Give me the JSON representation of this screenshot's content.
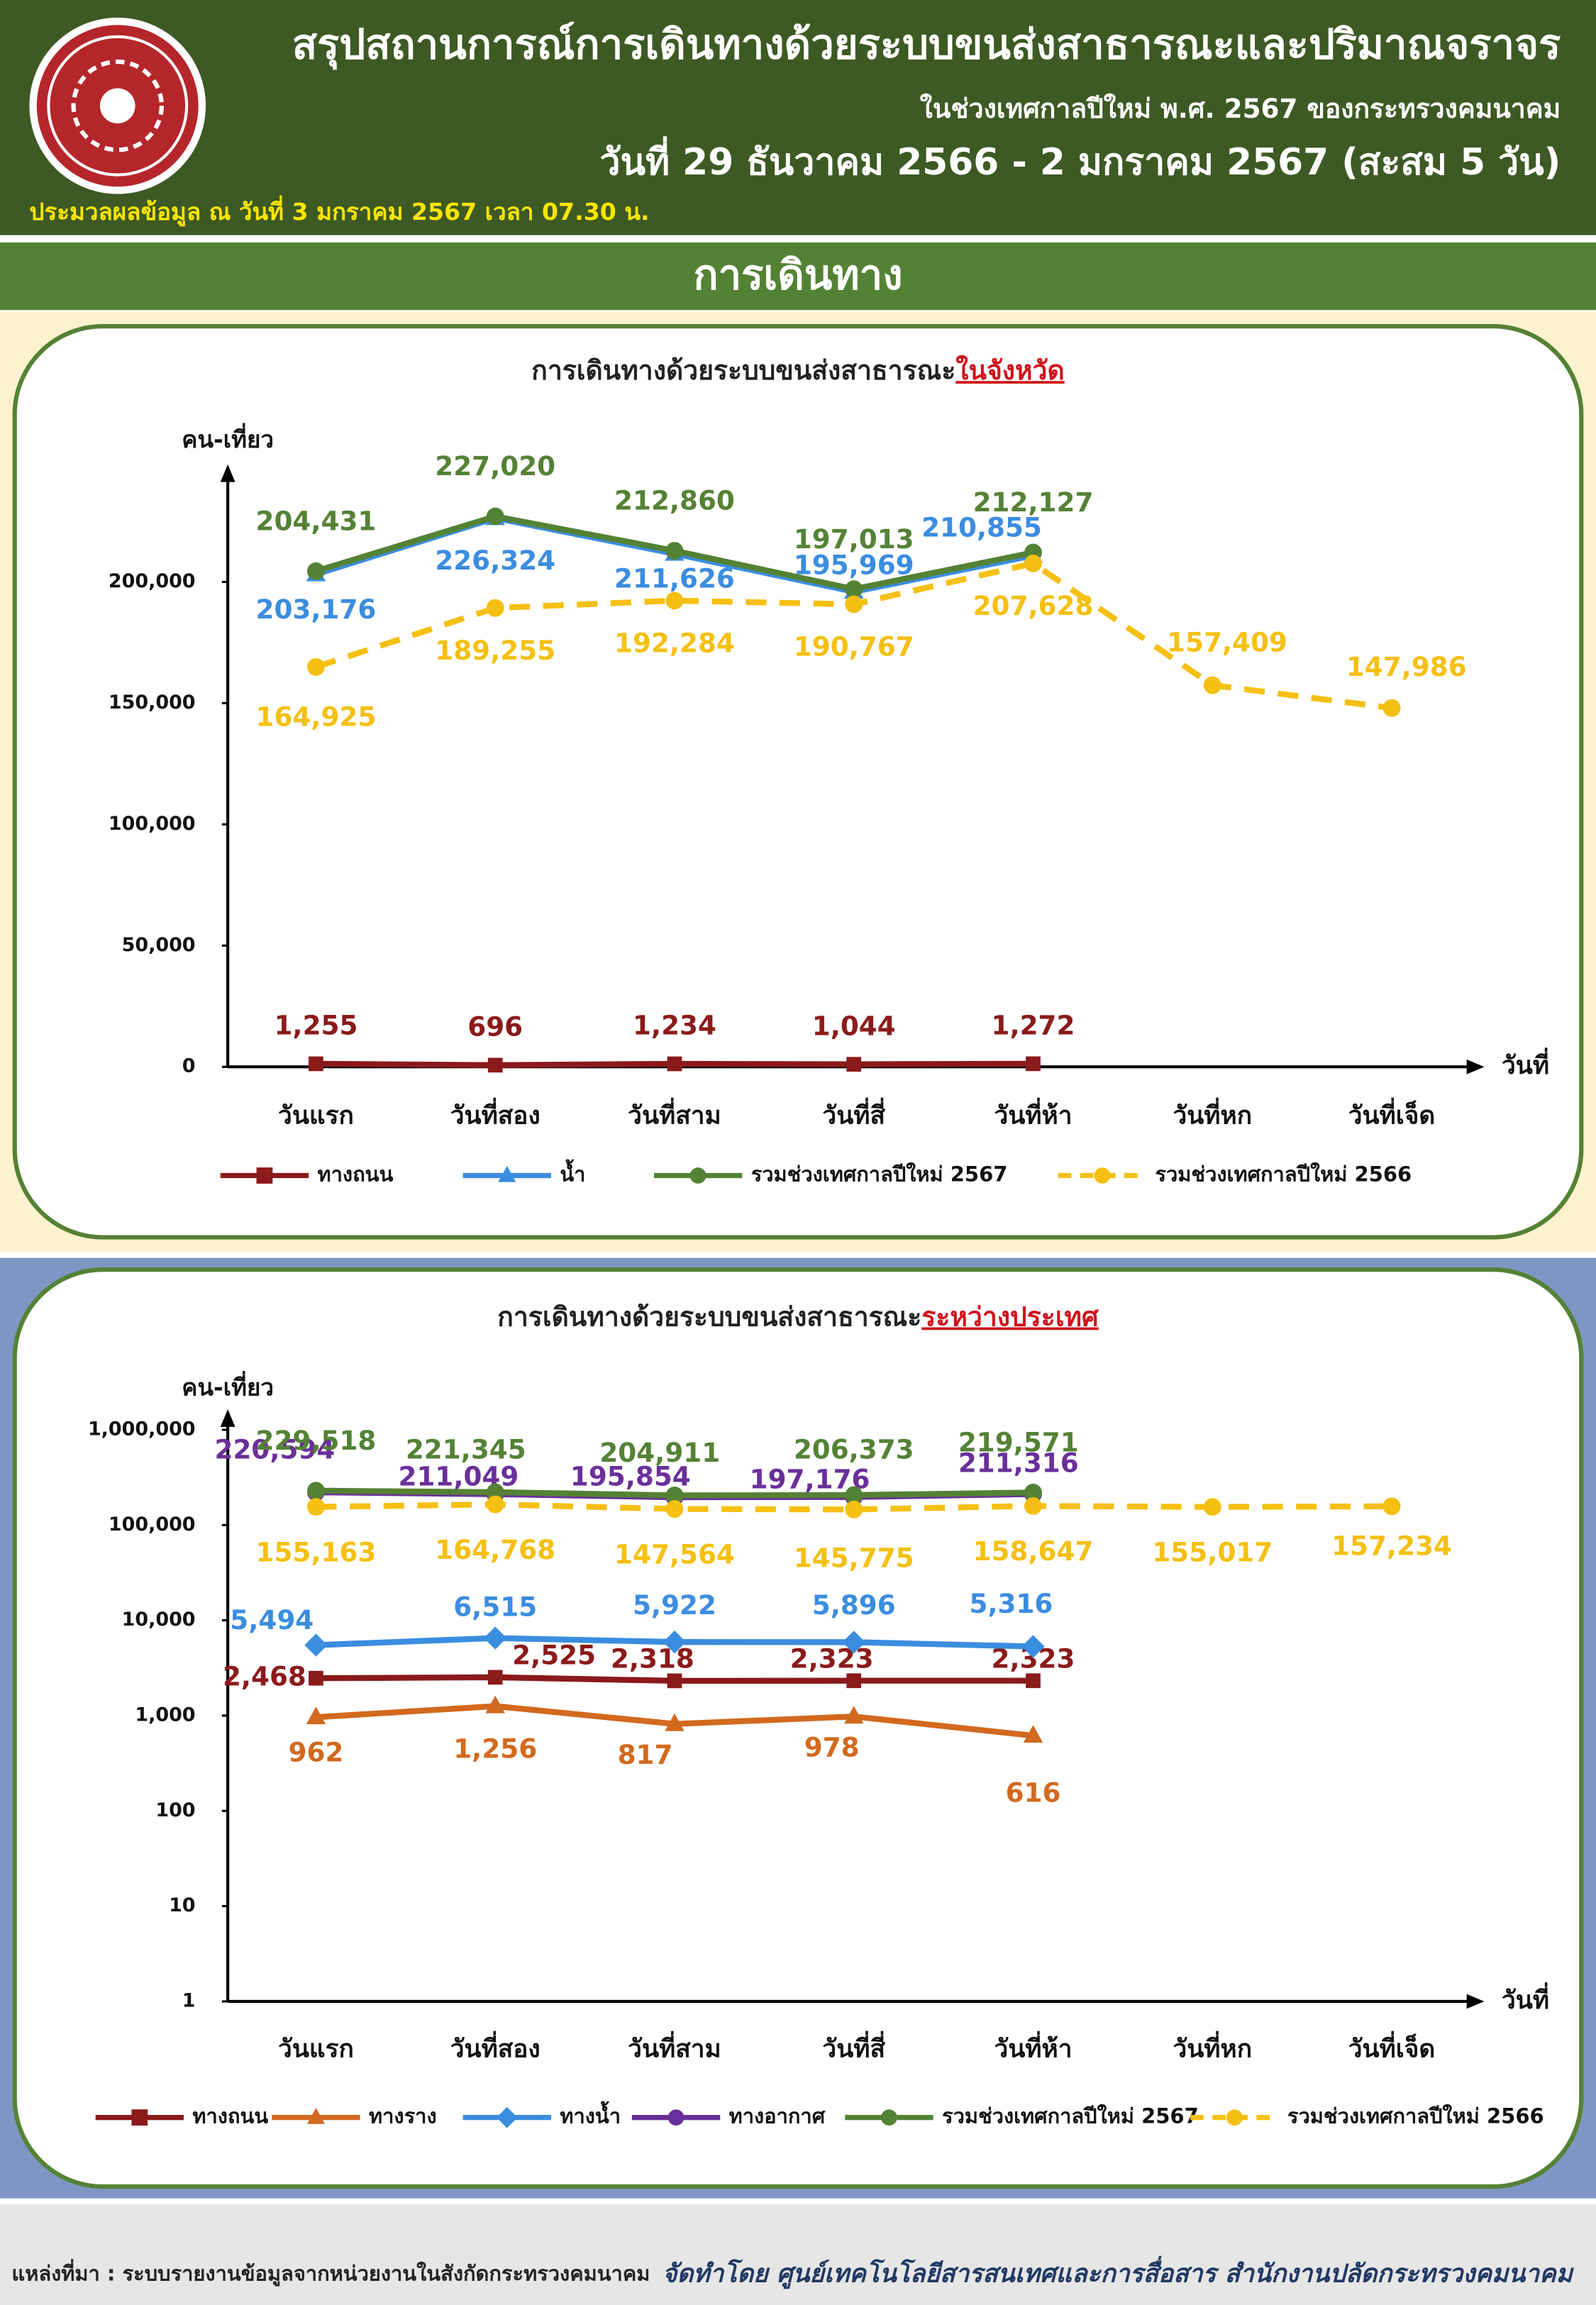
{
  "header": {
    "title": "สรุปสถานการณ์การเดินทางด้วยระบบขนส่งสาธารณะและปริมาณจราจร",
    "subtitle": "ในช่วงเทศกาลปีใหม่ พ.ศ. 2567 ของกระทรวงคมนาคม",
    "date_range": "วันที่ 29 ธันวาคม 2566 - 2 มกราคม 2567 (สะสม 5 วัน)",
    "processed": "ประมวลผลข้อมูล ณ วันที่ 3 มกราคม 2567 เวลา 07.30 น."
  },
  "section_title": "การเดินทาง",
  "chart_data": [
    {
      "type": "line",
      "title": "การเดินทางด้วยระบบขนส่งสาธารณะ",
      "title_highlight": "ในจังหวัด",
      "y_label": "คน-เที่ยว",
      "x_label": "วันที่",
      "categories": [
        "วันแรก",
        "วันที่สอง",
        "วันที่สาม",
        "วันที่สี่",
        "วันที่ห้า",
        "วันที่หก",
        "วันที่เจ็ด"
      ],
      "ylim": [
        0,
        240000
      ],
      "yticks": [
        0,
        {
          "value": 50000,
          "label": "50,000"
        },
        {
          "value": 100000,
          "label": "100,000"
        },
        {
          "value": 150000,
          "label": "150,000"
        },
        {
          "value": 200000,
          "label": "200,000"
        }
      ],
      "log_scale": false,
      "series": [
        {
          "name": "ทางถนน",
          "color": "#8b1a1a",
          "marker": "square",
          "dashed": false,
          "values": [
            1255,
            696,
            1234,
            1044,
            1272,
            null,
            null
          ],
          "value_labels": [
            "1,255",
            "696",
            "1,234",
            "1,044",
            "1,272",
            null,
            null
          ]
        },
        {
          "name": "น้ำ",
          "color": "#3b8de0",
          "marker": "triangle",
          "dashed": false,
          "values": [
            203176,
            226324,
            211626,
            195969,
            210855,
            null,
            null
          ],
          "value_labels": [
            "203,176",
            "226,324",
            "211,626",
            "195,969",
            "210,855",
            null,
            null
          ]
        },
        {
          "name": "รวมช่วงเทศกาลปีใหม่ 2567",
          "color": "#548235",
          "marker": "circle",
          "dashed": false,
          "values": [
            204431,
            227020,
            212860,
            197013,
            212127,
            null,
            null
          ],
          "value_labels": [
            "204,431",
            "227,020",
            "212,860",
            "197,013",
            "212,127",
            null,
            null
          ]
        },
        {
          "name": "รวมช่วงเทศกาลปีใหม่ 2566",
          "color": "#f5c011",
          "marker": "circle",
          "dashed": true,
          "values": [
            164925,
            189255,
            192284,
            190767,
            207628,
            157409,
            147986
          ],
          "value_labels": [
            "164,925",
            "189,255",
            "192,284",
            "190,767",
            "207,628",
            "157,409",
            "147,986"
          ]
        }
      ]
    },
    {
      "type": "line",
      "title": "การเดินทางด้วยระบบขนส่งสาธารณะ",
      "title_highlight": "ระหว่างประเทศ",
      "y_label": "คน-เที่ยว",
      "x_label": "วันที่",
      "categories": [
        "วันแรก",
        "วันที่สอง",
        "วันที่สาม",
        "วันที่สี่",
        "วันที่ห้า",
        "วันที่หก",
        "วันที่เจ็ด"
      ],
      "ylim": [
        1,
        1000000
      ],
      "yticks": [
        1,
        10,
        100,
        {
          "value": 1000,
          "label": "1,000"
        },
        {
          "value": 10000,
          "label": "10,000"
        },
        {
          "value": 100000,
          "label": "100,000"
        },
        {
          "value": 1000000,
          "label": "1,000,000"
        }
      ],
      "log_scale": true,
      "series": [
        {
          "name": "ทางถนน",
          "color": "#8b1a1a",
          "marker": "square",
          "dashed": false,
          "values": [
            2468,
            2525,
            2318,
            2323,
            2323,
            null,
            null
          ],
          "value_labels": [
            "2,468",
            "2,525",
            "2,318",
            "2,323",
            "2,323",
            null,
            null
          ]
        },
        {
          "name": "ทางราง",
          "color": "#d2691e",
          "marker": "triangle",
          "dashed": false,
          "values": [
            962,
            1256,
            817,
            978,
            616,
            null,
            null
          ],
          "value_labels": [
            "962",
            "1,256",
            "817",
            "978",
            "616",
            null,
            null
          ]
        },
        {
          "name": "ทางน้ำ",
          "color": "#3b8de0",
          "marker": "diamond",
          "dashed": false,
          "values": [
            5494,
            6515,
            5922,
            5896,
            5316,
            null,
            null
          ],
          "value_labels": [
            "5,494",
            "6,515",
            "5,922",
            "5,896",
            "5,316",
            null,
            null
          ]
        },
        {
          "name": "ทางอากาศ",
          "color": "#6a2f9a",
          "marker": "circle",
          "dashed": false,
          "values": [
            220594,
            211049,
            195854,
            197176,
            211316,
            null,
            null
          ],
          "value_labels": [
            "220,594",
            "211,049",
            "195,854",
            "197,176",
            "211,316",
            null,
            null
          ]
        },
        {
          "name": "รวมช่วงเทศกาลปีใหม่ 2567",
          "color": "#548235",
          "marker": "circle",
          "dashed": false,
          "values": [
            229518,
            221345,
            204911,
            206373,
            219571,
            null,
            null
          ],
          "value_labels": [
            "229,518",
            "221,345",
            "204,911",
            "206,373",
            "219,571",
            null,
            null
          ]
        },
        {
          "name": "รวมช่วงเทศกาลปีใหม่ 2566",
          "color": "#f5c011",
          "marker": "circle",
          "dashed": true,
          "values": [
            155163,
            164768,
            147564,
            145775,
            158647,
            155017,
            157234
          ],
          "value_labels": [
            "155,163",
            "164,768",
            "147,564",
            "145,775",
            "158,647",
            "155,017",
            "157,234"
          ]
        }
      ]
    }
  ],
  "footer": {
    "source": "แหล่งที่มา : ระบบรายงานข้อมูลจากหน่วยงานในสังกัดกระทรวงคมนาคม",
    "credit": "จัดทำโดย ศูนย์เทคโนโลยีสารสนเทศและการสื่อสาร สำนักงานปลัดกระทรวงคมนาคม"
  }
}
